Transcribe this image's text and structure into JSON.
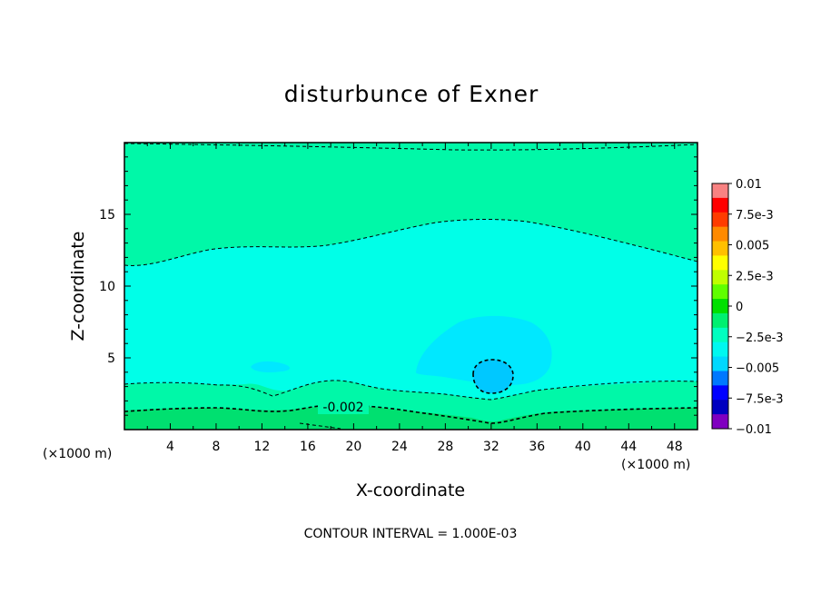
{
  "chart_data": {
    "type": "heatmap",
    "title": "disturbunce of Exner",
    "xlabel": "X-coordinate",
    "ylabel": "Z-coordinate",
    "x_unit": "(×1000 m)",
    "x_tick_labels": [
      "4",
      "8",
      "12",
      "16",
      "20",
      "24",
      "28",
      "32",
      "36",
      "40",
      "44",
      "48"
    ],
    "x_ticks": [
      4,
      8,
      12,
      16,
      20,
      24,
      28,
      32,
      36,
      40,
      44,
      48
    ],
    "y_tick_labels": [
      "5",
      "10",
      "15"
    ],
    "y_ticks": [
      5,
      10,
      15
    ],
    "xlim": [
      0,
      50
    ],
    "ylim": [
      0,
      20
    ],
    "contour_label": "-0.002",
    "contour_interval_text": "CONTOUR INTERVAL = 1.000E-03",
    "colorbar": {
      "tick_labels": [
        "0.01",
        "7.5e-3",
        "0.005",
        "2.5e-3",
        "0",
        "−2.5e-3",
        "−0.005",
        "−7.5e-3",
        "−0.01"
      ],
      "tick_values": [
        0.01,
        0.0075,
        0.005,
        0.0025,
        0,
        -0.0025,
        -0.005,
        -0.0075,
        -0.01
      ],
      "range": [
        -0.01,
        0.01
      ],
      "colors": [
        "#f88282",
        "#ff0000",
        "#ff3c00",
        "#ff8a00",
        "#ffc000",
        "#ffff00",
        "#bfff00",
        "#5fff00",
        "#00e000",
        "#00f070",
        "#00ffc0",
        "#00f8f0",
        "#00d8ff",
        "#0078ff",
        "#0000ff",
        "#0000c0",
        "#8000c0"
      ]
    },
    "regions": [
      {
        "level": "-0.001 to 0",
        "color": "#00f8a8",
        "where": "upper layer above ~11.5-14.5 and bottom band"
      },
      {
        "level": "-0.002 to -0.001",
        "color": "#00ffe8",
        "where": "main interior"
      },
      {
        "level": "-0.003 to -0.002",
        "color": "#00e8ff",
        "where": "blob centered near x=32, z=5"
      },
      {
        "level": "-0.004 to -0.003",
        "color": "#00c8ff",
        "where": "core near x=32, z=3.5"
      },
      {
        "level": "0 to 0.001",
        "color": "#00e070",
        "where": "near ground"
      }
    ]
  }
}
